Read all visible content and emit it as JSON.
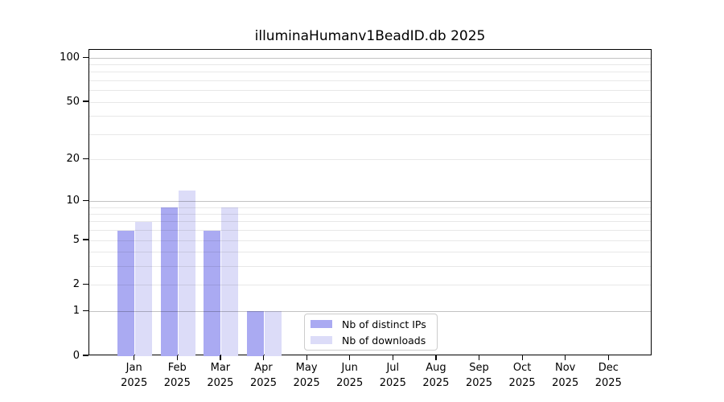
{
  "chart_data": {
    "type": "bar",
    "title": "illuminaHumanv1BeadID.db 2025",
    "categories": [
      "Jan 2025",
      "Feb 2025",
      "Mar 2025",
      "Apr 2025",
      "May 2025",
      "Jun 2025",
      "Jul 2025",
      "Aug 2025",
      "Sep 2025",
      "Oct 2025",
      "Nov 2025",
      "Dec 2025"
    ],
    "series": [
      {
        "name": "Nb of distinct IPs",
        "color": "#aaaaf2",
        "values": [
          6,
          9,
          6,
          1,
          0,
          0,
          0,
          0,
          0,
          0,
          0,
          0
        ]
      },
      {
        "name": "Nb of downloads",
        "color": "#dcdcf8",
        "values": [
          7,
          12,
          9,
          1,
          0,
          0,
          0,
          0,
          0,
          0,
          0,
          0
        ]
      }
    ],
    "xlabel": "",
    "ylabel": "",
    "yticks": [
      0,
      1,
      2,
      5,
      10,
      20,
      50,
      100
    ],
    "ylim": [
      0,
      115
    ],
    "yscale": "log1p",
    "gridlines": {
      "major": [
        1,
        10,
        100
      ],
      "minor": [
        2,
        3,
        4,
        5,
        6,
        7,
        8,
        9,
        20,
        30,
        40,
        50,
        60,
        70,
        80,
        90
      ]
    },
    "legend": {
      "position": "inside-bottom-center",
      "entries": [
        "Nb of distinct IPs",
        "Nb of downloads"
      ]
    },
    "colors": {
      "grid_major": "#c2c2c2",
      "grid_minor": "#e8e8e8",
      "axis": "#000000",
      "text": "#000000",
      "background": "#ffffff"
    }
  }
}
